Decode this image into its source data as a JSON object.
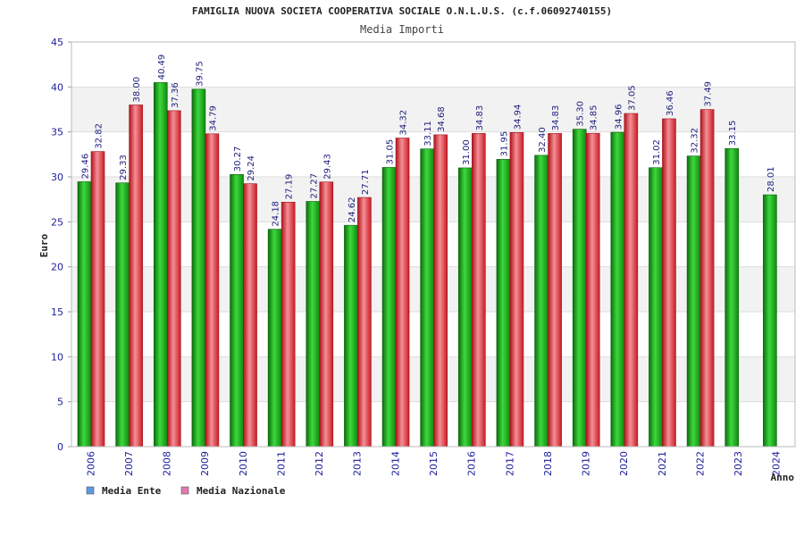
{
  "chart_data": {
    "type": "bar",
    "title": "FAMIGLIA NUOVA SOCIETA COOPERATIVA SOCIALE O.N.L.U.S. (c.f.06092740155)",
    "subtitle": "Media Importi",
    "ylabel": "Euro",
    "xlabel": "Anno",
    "ylim": [
      0,
      45
    ],
    "yticks": [
      "0",
      "5",
      "10",
      "15",
      "20",
      "25",
      "30",
      "35",
      "40",
      "45"
    ],
    "grid": true,
    "legend_position": "bottom-left",
    "categories": [
      "2006",
      "2007",
      "2008",
      "2009",
      "2010",
      "2011",
      "2012",
      "2013",
      "2014",
      "2015",
      "2016",
      "2017",
      "2018",
      "2019",
      "2020",
      "2021",
      "2022",
      "2023",
      "2024"
    ],
    "series": [
      {
        "name": "Media Ente",
        "color": "#1aa81a",
        "legend_color": "#5b9be6",
        "values": [
          29.46,
          29.33,
          40.49,
          39.75,
          30.27,
          24.18,
          27.27,
          24.62,
          31.05,
          33.11,
          31.0,
          31.95,
          32.4,
          35.3,
          34.96,
          31.02,
          32.32,
          33.15,
          28.01
        ],
        "labels": [
          "29.46",
          "29.33",
          "40.49",
          "39.75",
          "30.27",
          "24.18",
          "27.27",
          "24.62",
          "31.05",
          "33.11",
          "31.00",
          "31.95",
          "32.40",
          "35.30",
          "34.96",
          "31.02",
          "32.32",
          "33.15",
          "28.01"
        ]
      },
      {
        "name": "Media Nazionale",
        "color": "#e0242c",
        "legend_color": "#e27ab0",
        "values": [
          32.82,
          38.0,
          37.36,
          34.79,
          29.24,
          27.19,
          29.43,
          27.71,
          34.32,
          34.68,
          34.83,
          34.94,
          34.83,
          34.85,
          37.05,
          36.46,
          37.49,
          null,
          null
        ],
        "labels": [
          "32.82",
          "38.00",
          "37.36",
          "34.79",
          "29.24",
          "27.19",
          "29.43",
          "27.71",
          "34.32",
          "34.68",
          "34.83",
          "34.94",
          "34.83",
          "34.85",
          "37.05",
          "36.46",
          "37.49",
          null,
          null
        ]
      }
    ]
  }
}
